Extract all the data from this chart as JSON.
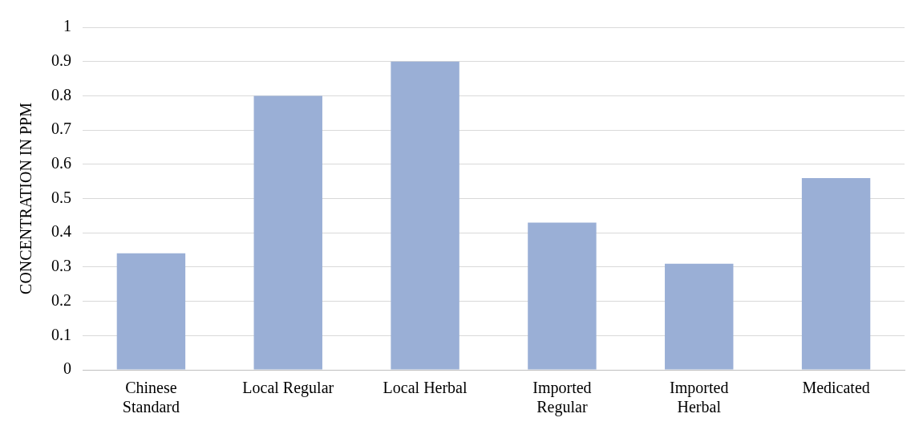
{
  "chart_data": {
    "type": "bar",
    "ylabel": "CONCENTRATION IN PPM",
    "categories": [
      "Chinese Standard",
      "Local Regular",
      "Local Herbal",
      "Imported Regular",
      "Imported Herbal",
      "Medicated"
    ],
    "values": [
      0.34,
      0.8,
      0.9,
      0.43,
      0.31,
      0.56
    ],
    "color": "#9aafd6",
    "ylim": [
      0,
      1
    ],
    "yticks": [
      0,
      0.1,
      0.2,
      0.3,
      0.4,
      0.5,
      0.6,
      0.7,
      0.8,
      0.9,
      1
    ],
    "grid": "y",
    "legend": false
  }
}
